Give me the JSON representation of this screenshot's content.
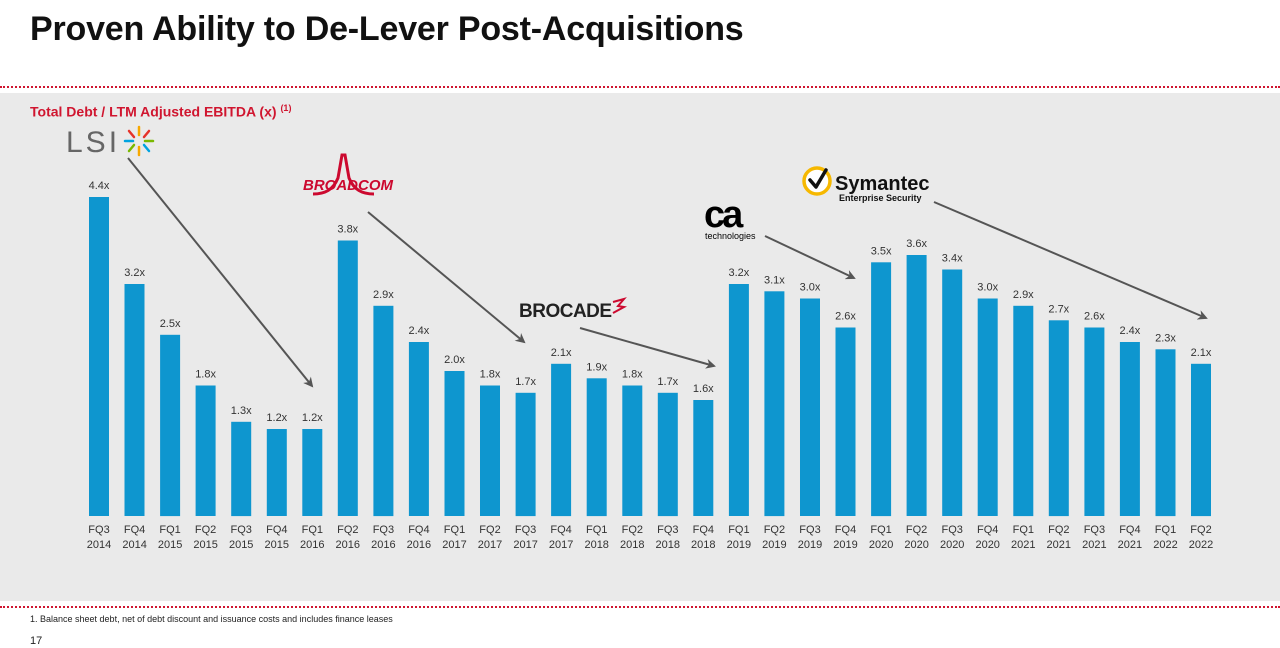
{
  "page": {
    "title": "Proven Ability to De-Lever Post-Acquisitions",
    "subtitle": "Total Debt / LTM Adjusted EBITDA (x)",
    "subtitle_sup": "(1)",
    "footnote": "1. Balance sheet debt, net of debt discount and issuance costs and includes finance leases",
    "page_number": "17"
  },
  "logos": {
    "lsi": "LSI",
    "broadcom": "BROADCOM",
    "brocade": "BROCADE",
    "ca": "ca",
    "ca_sub": "technologies",
    "symantec": "Symantec",
    "symantec_sub": "Enterprise Security"
  },
  "colors": {
    "bar": "#0e96cf",
    "accent": "#d0152f",
    "panel": "#eaeaea",
    "arrow": "#555555"
  },
  "chart_data": {
    "type": "bar",
    "title": "Total Debt / LTM Adjusted EBITDA (x)",
    "categories": [
      [
        "FQ3",
        "2014"
      ],
      [
        "FQ4",
        "2014"
      ],
      [
        "FQ1",
        "2015"
      ],
      [
        "FQ2",
        "2015"
      ],
      [
        "FQ3",
        "2015"
      ],
      [
        "FQ4",
        "2015"
      ],
      [
        "FQ1",
        "2016"
      ],
      [
        "FQ2",
        "2016"
      ],
      [
        "FQ3",
        "2016"
      ],
      [
        "FQ4",
        "2016"
      ],
      [
        "FQ1",
        "2017"
      ],
      [
        "FQ2",
        "2017"
      ],
      [
        "FQ3",
        "2017"
      ],
      [
        "FQ4",
        "2017"
      ],
      [
        "FQ1",
        "2018"
      ],
      [
        "FQ2",
        "2018"
      ],
      [
        "FQ3",
        "2018"
      ],
      [
        "FQ4",
        "2018"
      ],
      [
        "FQ1",
        "2019"
      ],
      [
        "FQ2",
        "2019"
      ],
      [
        "FQ3",
        "2019"
      ],
      [
        "FQ4",
        "2019"
      ],
      [
        "FQ1",
        "2020"
      ],
      [
        "FQ2",
        "2020"
      ],
      [
        "FQ3",
        "2020"
      ],
      [
        "FQ4",
        "2020"
      ],
      [
        "FQ1",
        "2021"
      ],
      [
        "FQ2",
        "2021"
      ],
      [
        "FQ3",
        "2021"
      ],
      [
        "FQ4",
        "2021"
      ],
      [
        "FQ1",
        "2022"
      ],
      [
        "FQ2",
        "2022"
      ]
    ],
    "values": [
      4.4,
      3.2,
      2.5,
      1.8,
      1.3,
      1.2,
      1.2,
      3.8,
      2.9,
      2.4,
      2.0,
      1.8,
      1.7,
      2.1,
      1.9,
      1.8,
      1.7,
      1.6,
      3.2,
      3.1,
      3.0,
      2.6,
      3.5,
      3.6,
      3.4,
      3.0,
      2.9,
      2.7,
      2.6,
      2.4,
      2.3,
      2.1
    ],
    "labels": [
      "4.4x",
      "3.2x",
      "2.5x",
      "1.8x",
      "1.3x",
      "1.2x",
      "1.2x",
      "3.8x",
      "2.9x",
      "2.4x",
      "2.0x",
      "1.8x",
      "1.7x",
      "2.1x",
      "1.9x",
      "1.8x",
      "1.7x",
      "1.6x",
      "3.2x",
      "3.1x",
      "3.0x",
      "2.6x",
      "3.5x",
      "3.6x",
      "3.4x",
      "3.0x",
      "2.9x",
      "2.7x",
      "2.6x",
      "2.4x",
      "2.3x",
      "2.1x"
    ],
    "ylim": [
      0,
      4.4
    ],
    "grid": false,
    "legend": "none"
  }
}
